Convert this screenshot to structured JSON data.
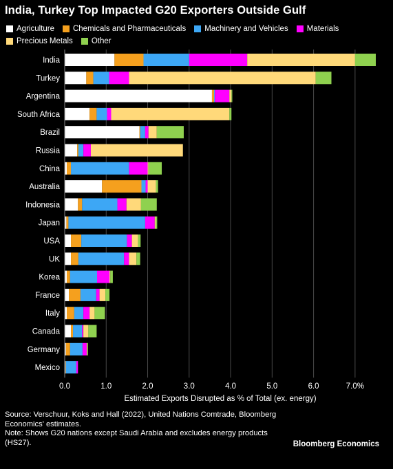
{
  "chart_data": {
    "type": "bar",
    "orientation": "horizontal",
    "stacked": true,
    "title": "India, Turkey Top Impacted G20 Exporters Outside Gulf",
    "xlabel": "Estimated Exports Disrupted as % of Total (ex. energy)",
    "ylabel": "",
    "xlim": [
      0,
      7.5
    ],
    "x_ticks": [
      "0.0",
      "1.0",
      "2.0",
      "3.0",
      "4.0",
      "5.0",
      "6.0",
      "7.0%"
    ],
    "x_tick_values": [
      0,
      1,
      2,
      3,
      4,
      5,
      6,
      7
    ],
    "grid": true,
    "legend_position": "top-left",
    "categories": [
      "India",
      "Turkey",
      "Argentina",
      "South Africa",
      "Brazil",
      "Russia",
      "China",
      "Australia",
      "Indonesia",
      "Japan",
      "USA",
      "UK",
      "Korea",
      "France",
      "Italy",
      "Canada",
      "Germany",
      "Mexico"
    ],
    "series": [
      {
        "name": "Agriculture",
        "color": "#ffffff",
        "values": [
          1.2,
          0.52,
          3.55,
          0.6,
          1.8,
          0.3,
          0.05,
          0.9,
          0.32,
          0.04,
          0.15,
          0.15,
          0.05,
          0.1,
          0.05,
          0.15,
          0.03,
          0.02
        ]
      },
      {
        "name": "Chemicals and Pharmaceuticals",
        "color": "#f5a01e",
        "values": [
          0.7,
          0.17,
          0.05,
          0.17,
          0.02,
          0.03,
          0.1,
          0.95,
          0.1,
          0.05,
          0.25,
          0.18,
          0.08,
          0.28,
          0.18,
          0.05,
          0.1,
          0.01
        ]
      },
      {
        "name": "Machinery and Vehicles",
        "color": "#3da7f5",
        "values": [
          1.1,
          0.38,
          0.02,
          0.25,
          0.12,
          0.12,
          1.4,
          0.1,
          0.85,
          1.85,
          1.1,
          1.1,
          0.65,
          0.38,
          0.22,
          0.22,
          0.3,
          0.25
        ]
      },
      {
        "name": "Materials",
        "color": "#ff00ff",
        "values": [
          1.4,
          0.48,
          0.35,
          0.1,
          0.08,
          0.18,
          0.45,
          0.05,
          0.22,
          0.23,
          0.12,
          0.12,
          0.3,
          0.08,
          0.15,
          0.03,
          0.1,
          0.04
        ]
      },
      {
        "name": "Precious Metals",
        "color": "#ffd97a",
        "values": [
          2.6,
          4.5,
          0.05,
          2.85,
          0.2,
          2.22,
          0.02,
          0.2,
          0.35,
          0.02,
          0.15,
          0.18,
          0.02,
          0.14,
          0.12,
          0.12,
          0.01,
          0.0
        ]
      },
      {
        "name": "Other",
        "color": "#8fd14f",
        "values": [
          0.5,
          0.38,
          0.02,
          0.05,
          0.65,
          0.0,
          0.32,
          0.05,
          0.38,
          0.04,
          0.06,
          0.09,
          0.06,
          0.1,
          0.25,
          0.2,
          0.02,
          0.0
        ]
      }
    ]
  },
  "footer": {
    "source": "Source: Verschuur, Koks and Hall (2022), United Nations Comtrade, Bloomberg Economics' estimates.",
    "note": "Note: Shows G20 nations except Saudi Arabia and excludes energy products (HS27).",
    "brand": "Bloomberg Economics"
  }
}
